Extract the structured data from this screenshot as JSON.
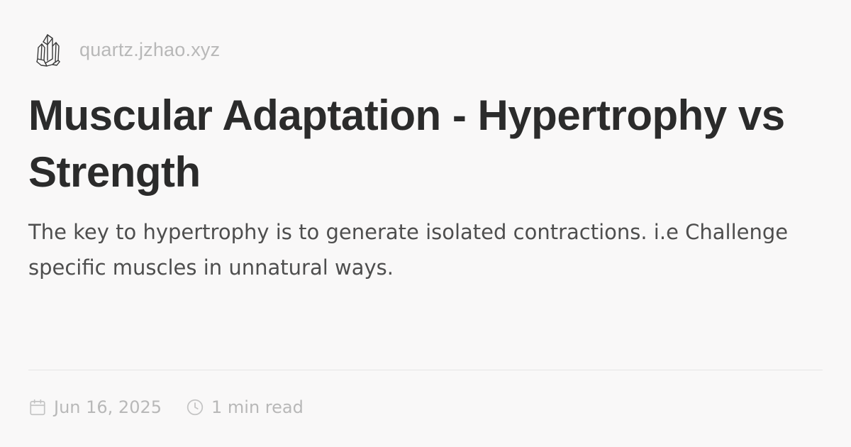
{
  "site": {
    "logo_icon": "crystal-quartz-logo",
    "name": "quartz.jzhao.xyz"
  },
  "article": {
    "title": "Muscular Adaptation - Hypertrophy vs Strength",
    "description": "The key to hypertrophy is to generate isolated contractions. i.e Challenge specific muscles in unnatural ways."
  },
  "meta": {
    "date_icon": "calendar-icon",
    "date": "Jun 16, 2025",
    "read_time_icon": "clock-icon",
    "read_time": "1 min read"
  },
  "colors": {
    "background": "#f9f8f8",
    "title": "#2b2b2b",
    "body": "#4e4e4e",
    "muted": "#b8b8b8",
    "divider": "#e5e5e5"
  }
}
